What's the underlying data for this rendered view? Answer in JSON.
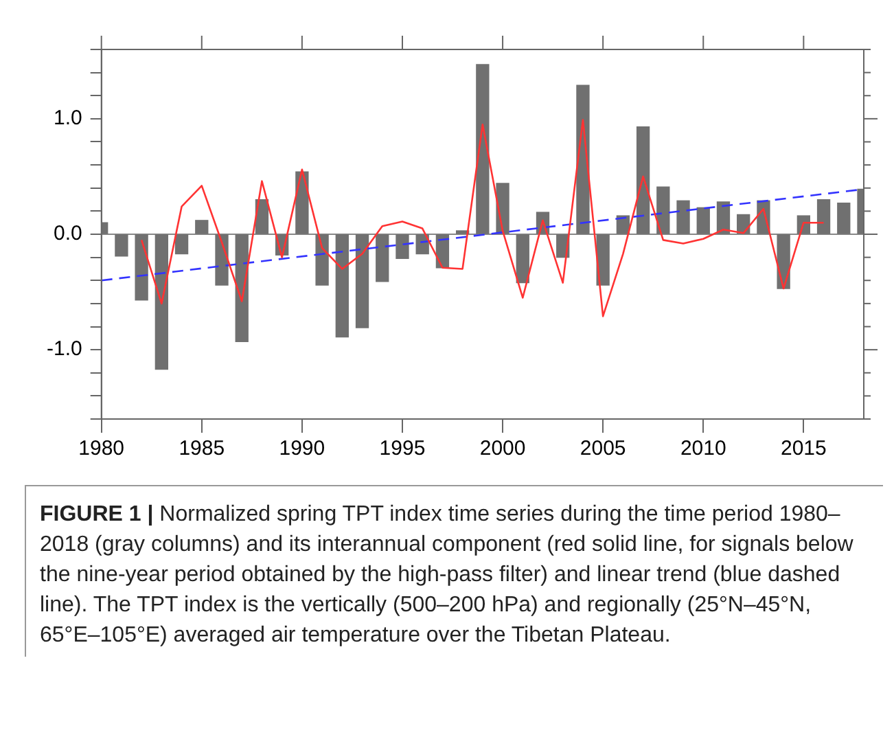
{
  "chart_data": {
    "type": "bar",
    "x": [
      1980,
      1981,
      1982,
      1983,
      1984,
      1985,
      1986,
      1987,
      1988,
      1989,
      1990,
      1991,
      1992,
      1993,
      1994,
      1995,
      1996,
      1997,
      1998,
      1999,
      2000,
      2001,
      2002,
      2003,
      2004,
      2005,
      2006,
      2007,
      2008,
      2009,
      2010,
      2011,
      2012,
      2013,
      2014,
      2015,
      2016,
      2017,
      2018
    ],
    "series": [
      {
        "color": "#707070",
        "values": [
          0.1,
          -0.19,
          -0.57,
          -1.17,
          -0.17,
          0.12,
          -0.44,
          -0.93,
          0.3,
          -0.18,
          0.54,
          -0.44,
          -0.89,
          -0.81,
          -0.41,
          -0.21,
          -0.17,
          -0.29,
          0.03,
          1.47,
          0.44,
          -0.42,
          0.19,
          -0.2,
          1.29,
          -0.44,
          0.16,
          0.93,
          0.41,
          0.29,
          0.23,
          0.28,
          0.17,
          0.29,
          -0.47,
          0.16,
          0.3,
          0.27,
          0.39
        ]
      },
      {
        "type": "line",
        "color": "#ff3333",
        "line_style": "solid",
        "x": [
          1982,
          1983,
          1984,
          1985,
          1986,
          1987,
          1988,
          1989,
          1990,
          1991,
          1992,
          1993,
          1994,
          1995,
          1996,
          1997,
          1998,
          1999,
          2000,
          2001,
          2002,
          2003,
          2004,
          2005,
          2006,
          2007,
          2008,
          2009,
          2010,
          2011,
          2012,
          2013,
          2014,
          2015,
          2016
        ],
        "values": [
          -0.05,
          -0.6,
          0.24,
          0.42,
          -0.07,
          -0.58,
          0.46,
          -0.2,
          0.56,
          -0.12,
          -0.3,
          -0.17,
          0.07,
          0.11,
          0.05,
          -0.29,
          -0.3,
          0.95,
          0.03,
          -0.55,
          0.12,
          -0.42,
          0.99,
          -0.71,
          -0.17,
          0.5,
          -0.05,
          -0.08,
          -0.04,
          0.04,
          0.01,
          0.22,
          -0.47,
          0.1,
          0.1
        ]
      },
      {
        "type": "line",
        "color": "#3333ff",
        "line_style": "dashed",
        "x": [
          1980,
          2018
        ],
        "values": [
          -0.4,
          0.39
        ]
      }
    ],
    "xlim": [
      1980,
      2018
    ],
    "xticks": [
      1980,
      1985,
      1990,
      1995,
      2000,
      2005,
      2010,
      2015
    ],
    "ylim": [
      -1.6,
      1.6
    ],
    "yticks": [
      {
        "value": -1.6,
        "label": null
      },
      {
        "value": -1.4,
        "label": null
      },
      {
        "value": -1.2,
        "label": null
      },
      {
        "value": -1.0,
        "label": "-1.0"
      },
      {
        "value": -0.8,
        "label": null
      },
      {
        "value": -0.6,
        "label": null
      },
      {
        "value": -0.4,
        "label": null
      },
      {
        "value": -0.2,
        "label": null
      },
      {
        "value": 0,
        "label": "0.0"
      },
      {
        "value": 0.2,
        "label": null
      },
      {
        "value": 0.4,
        "label": null
      },
      {
        "value": 0.6,
        "label": null
      },
      {
        "value": 0.8,
        "label": null
      },
      {
        "value": 1.0,
        "label": "1.0"
      },
      {
        "value": 1.2,
        "label": null
      },
      {
        "value": 1.4,
        "label": null
      },
      {
        "value": 1.6,
        "label": null
      }
    ],
    "ref_lines": [
      {
        "axis": "y",
        "value": 0,
        "color": "#888888"
      }
    ],
    "grid": false,
    "legend": false,
    "marker": "none",
    "annotations": [
      "FIGURE 1 |",
      "Normalized spring TPT index time series during the time period 1980–2018 (gray columns) and its interannual component (red solid line, for signals below the nine-year period obtained by the high-pass filter) and linear trend (blue dashed line). The TPT index is the vertically (500–200 hPa) and regionally (25°N–45°N, 65°E–105°E) averaged air temperature over the Tibetan Plateau."
    ]
  }
}
